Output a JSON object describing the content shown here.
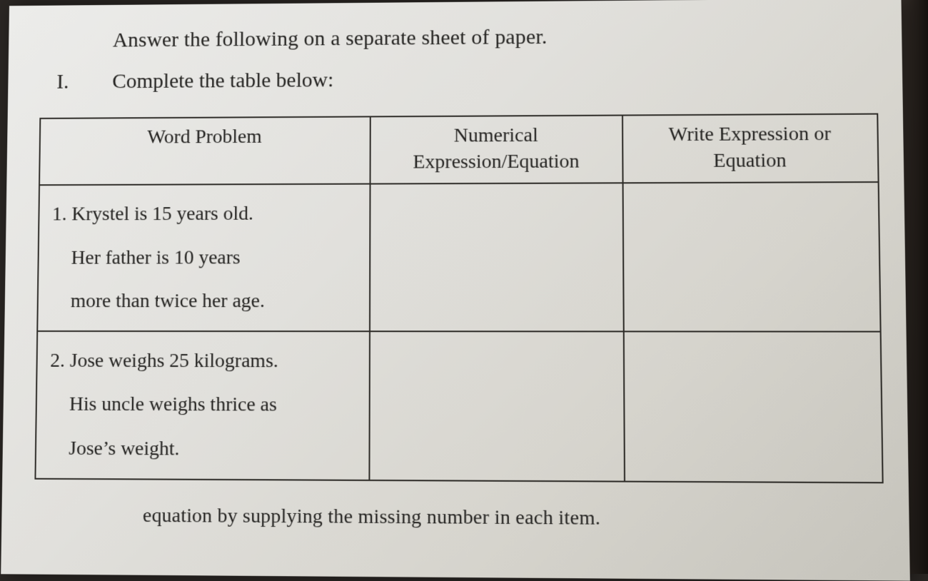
{
  "intro": "Answer the following on a separate sheet of paper.",
  "section": {
    "number": "I.",
    "text": "Complete the table below:"
  },
  "table": {
    "columns": [
      {
        "label": "Word Problem",
        "width": "40%",
        "align": "center"
      },
      {
        "label": "Numerical Expression/Equation",
        "width": "30%",
        "align": "center"
      },
      {
        "label": "Write Expression or Equation",
        "width": "30%",
        "align": "center"
      }
    ],
    "rows": [
      {
        "problem_lines": [
          "1.  Krystel is 15 years old.",
          "Her father is 10 years",
          "more than twice her age."
        ],
        "numerical": "",
        "classify": ""
      },
      {
        "problem_lines": [
          "2. Jose weighs 25 kilograms.",
          "His uncle weighs thrice as",
          "Jose’s weight."
        ],
        "numerical": "",
        "classify": ""
      }
    ],
    "border_color": "#2d2b27",
    "font_family": "Georgia, 'Times New Roman', serif",
    "header_fontsize": 28,
    "cell_fontsize": 28
  },
  "footer_fragment": "equation by supplying the missing number in each item.",
  "colors": {
    "paper_light": "#ececea",
    "paper_dark": "#c5c3bb",
    "text": "#242321",
    "background": "#2a2623"
  }
}
